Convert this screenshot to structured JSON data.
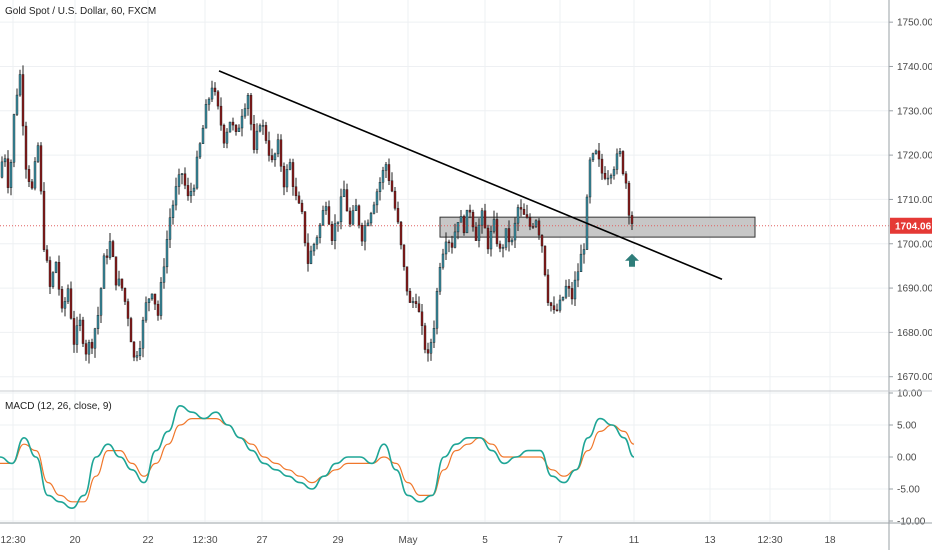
{
  "title": "Gold Spot / U.S. Dollar, 60, FXCM",
  "colors": {
    "up": "#3a8fa4",
    "down": "#8b1a1a",
    "wick": "#222222",
    "trendline": "#000000",
    "price_line": "#e06060",
    "price_tag": "#e53935",
    "zone_fill": "#bdbdbd",
    "zone_border": "#333333",
    "arrow": "#2e7d7a",
    "macd_line": "#1ea596",
    "signal_line": "#f0772b",
    "grid": "#eef0f3"
  },
  "chart_data": {
    "type": "candlestick",
    "symbol": "Gold Spot / U.S. Dollar",
    "interval": "60",
    "source": "FXCM",
    "y_ticks": [
      "1750.00",
      "1740.00",
      "1730.00",
      "1720.00",
      "1710.00",
      "1700.00",
      "1690.00",
      "1680.00",
      "1670.00"
    ],
    "ylim": [
      1667,
      1755
    ],
    "current_price": "1704.06",
    "x_labels": [
      "12:30",
      "20",
      "22",
      "12:30",
      "27",
      "29",
      "May",
      "5",
      "7",
      "11",
      "13",
      "12:30",
      "18"
    ],
    "close_path": [
      [
        0,
        1715
      ],
      [
        4,
        1722
      ],
      [
        9,
        1712
      ],
      [
        15,
        1732
      ],
      [
        20,
        1738
      ],
      [
        26,
        1718
      ],
      [
        32,
        1712
      ],
      [
        38,
        1722
      ],
      [
        44,
        1700
      ],
      [
        50,
        1690
      ],
      [
        56,
        1696
      ],
      [
        62,
        1684
      ],
      [
        68,
        1690
      ],
      [
        74,
        1678
      ],
      [
        80,
        1682
      ],
      [
        86,
        1676
      ],
      [
        92,
        1678
      ],
      [
        98,
        1684
      ],
      [
        104,
        1696
      ],
      [
        110,
        1700
      ],
      [
        116,
        1692
      ],
      [
        122,
        1690
      ],
      [
        128,
        1684
      ],
      [
        134,
        1674
      ],
      [
        140,
        1678
      ],
      [
        146,
        1686
      ],
      [
        152,
        1690
      ],
      [
        158,
        1684
      ],
      [
        164,
        1696
      ],
      [
        170,
        1706
      ],
      [
        176,
        1712
      ],
      [
        182,
        1716
      ],
      [
        188,
        1710
      ],
      [
        194,
        1714
      ],
      [
        200,
        1722
      ],
      [
        206,
        1730
      ],
      [
        212,
        1736
      ],
      [
        218,
        1730
      ],
      [
        224,
        1724
      ],
      [
        230,
        1728
      ],
      [
        236,
        1724
      ],
      [
        242,
        1730
      ],
      [
        248,
        1734
      ],
      [
        254,
        1720
      ],
      [
        260,
        1728
      ],
      [
        266,
        1724
      ],
      [
        272,
        1718
      ],
      [
        278,
        1722
      ],
      [
        284,
        1714
      ],
      [
        290,
        1718
      ],
      [
        296,
        1710
      ],
      [
        302,
        1706
      ],
      [
        308,
        1696
      ],
      [
        314,
        1700
      ],
      [
        320,
        1704
      ],
      [
        326,
        1710
      ],
      [
        332,
        1702
      ],
      [
        338,
        1706
      ],
      [
        344,
        1712
      ],
      [
        350,
        1704
      ],
      [
        356,
        1708
      ],
      [
        362,
        1702
      ],
      [
        368,
        1706
      ],
      [
        374,
        1710
      ],
      [
        380,
        1714
      ],
      [
        386,
        1718
      ],
      [
        392,
        1712
      ],
      [
        398,
        1704
      ],
      [
        404,
        1694
      ],
      [
        410,
        1686
      ],
      [
        416,
        1688
      ],
      [
        422,
        1680
      ],
      [
        428,
        1674
      ],
      [
        434,
        1682
      ],
      [
        440,
        1696
      ],
      [
        446,
        1702
      ],
      [
        452,
        1700
      ],
      [
        458,
        1706
      ],
      [
        464,
        1704
      ],
      [
        470,
        1708
      ],
      [
        476,
        1702
      ],
      [
        482,
        1706
      ],
      [
        488,
        1700
      ],
      [
        494,
        1704
      ],
      [
        500,
        1698
      ],
      [
        506,
        1702
      ],
      [
        512,
        1700
      ],
      [
        518,
        1708
      ],
      [
        524,
        1706
      ],
      [
        530,
        1704
      ],
      [
        536,
        1706
      ],
      [
        542,
        1700
      ],
      [
        548,
        1688
      ],
      [
        554,
        1684
      ],
      [
        560,
        1686
      ],
      [
        566,
        1690
      ],
      [
        572,
        1688
      ],
      [
        578,
        1694
      ],
      [
        584,
        1700
      ],
      [
        590,
        1718
      ],
      [
        596,
        1720
      ],
      [
        602,
        1716
      ],
      [
        608,
        1716
      ],
      [
        614,
        1718
      ],
      [
        620,
        1720
      ],
      [
        626,
        1714
      ],
      [
        630,
        1706
      ],
      [
        634,
        1704
      ]
    ],
    "trendline": [
      [
        219,
        1739
      ],
      [
        722,
        1692
      ]
    ],
    "support_zone": {
      "x1": 440,
      "x2": 755,
      "y_top": 1706,
      "y_bottom": 1701.5
    },
    "arrow_at": [
      632,
      1700
    ],
    "macd": {
      "label": "MACD (12, 26, close, 9)",
      "y_ticks": [
        "10.00",
        "5.00",
        "0.00",
        "-5.00",
        "-10.00"
      ],
      "ylim": [
        -10,
        10
      ],
      "macd_line": [
        [
          0,
          0
        ],
        [
          12,
          -1
        ],
        [
          24,
          3
        ],
        [
          36,
          0
        ],
        [
          48,
          -6
        ],
        [
          60,
          -7
        ],
        [
          72,
          -8
        ],
        [
          84,
          -6
        ],
        [
          96,
          0
        ],
        [
          108,
          2
        ],
        [
          120,
          0
        ],
        [
          132,
          -2
        ],
        [
          144,
          -4
        ],
        [
          156,
          1
        ],
        [
          168,
          4
        ],
        [
          180,
          8
        ],
        [
          192,
          7
        ],
        [
          204,
          6
        ],
        [
          216,
          7
        ],
        [
          228,
          5
        ],
        [
          240,
          3
        ],
        [
          252,
          1
        ],
        [
          264,
          -1
        ],
        [
          276,
          -2
        ],
        [
          288,
          -3
        ],
        [
          300,
          -4
        ],
        [
          312,
          -5
        ],
        [
          324,
          -3
        ],
        [
          336,
          -1
        ],
        [
          348,
          0
        ],
        [
          360,
          0
        ],
        [
          372,
          -1
        ],
        [
          384,
          2
        ],
        [
          396,
          -2
        ],
        [
          408,
          -6
        ],
        [
          420,
          -7
        ],
        [
          432,
          -6
        ],
        [
          444,
          0
        ],
        [
          456,
          2
        ],
        [
          468,
          3
        ],
        [
          480,
          3
        ],
        [
          492,
          1
        ],
        [
          504,
          -1
        ],
        [
          516,
          0
        ],
        [
          528,
          1
        ],
        [
          540,
          1
        ],
        [
          552,
          -3
        ],
        [
          564,
          -4
        ],
        [
          576,
          -2
        ],
        [
          588,
          3
        ],
        [
          600,
          6
        ],
        [
          612,
          5
        ],
        [
          624,
          3
        ],
        [
          634,
          0
        ]
      ],
      "signal_line": [
        [
          0,
          -1
        ],
        [
          12,
          -1
        ],
        [
          24,
          2
        ],
        [
          36,
          1
        ],
        [
          48,
          -4
        ],
        [
          60,
          -6
        ],
        [
          72,
          -7
        ],
        [
          84,
          -7
        ],
        [
          96,
          -3
        ],
        [
          108,
          1
        ],
        [
          120,
          1
        ],
        [
          132,
          -1
        ],
        [
          144,
          -3
        ],
        [
          156,
          -1
        ],
        [
          168,
          2
        ],
        [
          180,
          5
        ],
        [
          192,
          6
        ],
        [
          204,
          6
        ],
        [
          216,
          6
        ],
        [
          228,
          5
        ],
        [
          240,
          3
        ],
        [
          252,
          2
        ],
        [
          264,
          0
        ],
        [
          276,
          -1
        ],
        [
          288,
          -2
        ],
        [
          300,
          -3
        ],
        [
          312,
          -4
        ],
        [
          324,
          -3
        ],
        [
          336,
          -2
        ],
        [
          348,
          -1
        ],
        [
          360,
          -1
        ],
        [
          372,
          -1
        ],
        [
          384,
          0
        ],
        [
          396,
          -1
        ],
        [
          408,
          -4
        ],
        [
          420,
          -6
        ],
        [
          432,
          -6
        ],
        [
          444,
          -2
        ],
        [
          456,
          1
        ],
        [
          468,
          2
        ],
        [
          480,
          3
        ],
        [
          492,
          2
        ],
        [
          504,
          0
        ],
        [
          516,
          0
        ],
        [
          528,
          0
        ],
        [
          540,
          0
        ],
        [
          552,
          -2
        ],
        [
          564,
          -3
        ],
        [
          576,
          -2
        ],
        [
          588,
          1
        ],
        [
          600,
          4
        ],
        [
          612,
          5
        ],
        [
          624,
          4
        ],
        [
          634,
          2
        ]
      ]
    }
  }
}
